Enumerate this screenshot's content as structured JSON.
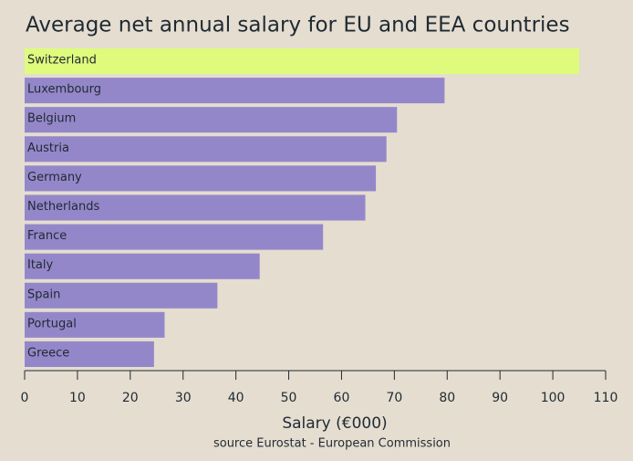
{
  "chart_data": {
    "type": "barh",
    "title": "Average net annual salary for EU and EEA countries",
    "xlabel": "Salary (€000)",
    "source": "source Eurostat - European Commission",
    "categories": [
      "Switzerland",
      "Luxembourg",
      "Belgium",
      "Austria",
      "Germany",
      "Netherlands",
      "France",
      "Italy",
      "Spain",
      "Portugal",
      "Greece"
    ],
    "values": [
      105,
      79.5,
      70.5,
      68.5,
      66.5,
      64.5,
      56.5,
      44.5,
      36.5,
      26.5,
      24.5
    ],
    "colors": [
      "#dffb7c",
      "#9487c9",
      "#9487c9",
      "#9487c9",
      "#9487c9",
      "#9487c9",
      "#9487c9",
      "#9487c9",
      "#9487c9",
      "#9487c9",
      "#9487c9"
    ],
    "xlim": [
      0,
      110
    ],
    "xticks": [
      0,
      10,
      20,
      30,
      40,
      50,
      60,
      70,
      80,
      90,
      100,
      110
    ],
    "grid": false
  }
}
